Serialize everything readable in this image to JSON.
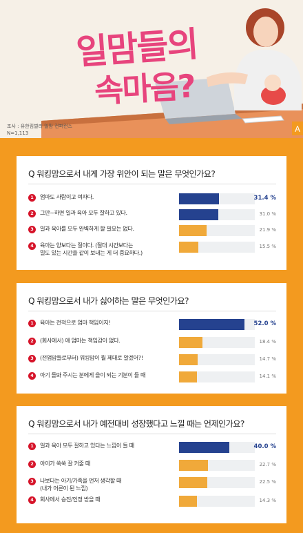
{
  "header": {
    "title_line1": "일맘들의",
    "title_line2": "속마음?",
    "survey_by": "조사 : 유한킴벌리 일맘 컨퍼런스",
    "sample_size": "N=1,113",
    "corner_mark": "A"
  },
  "colors": {
    "background": "#f39a1f",
    "highlight_bar": "#25428f",
    "normal_bar": "#f0a93a",
    "number_badge": "#d6142a"
  },
  "chart_data": [
    {
      "type": "bar",
      "title": "Q 워킹맘으로서 내게 가장 위안이 되는 말은 무엇인가요?",
      "categories": [
        "엄마도 사람이고 여자다.",
        "그만~하면 일과 육아 모두 잘하고 있다.",
        "일과 육아를 모두 완벽하게 할 필요는 없다.",
        "육아는 양보다는 질이다. (절대 시간보다는 밀도 있는 시간을 같이 보내는 게 더 중요하다.)"
      ],
      "lines": [
        [
          "엄마도 사람이고 여자다."
        ],
        [
          "그만~하면 일과 육아 모두 잘하고 있다."
        ],
        [
          "일과 육아를 모두 완벽하게 할 필요는 없다."
        ],
        [
          "육아는 양보다는 질이다. (절대 시간보다는",
          "밀도 있는 시간을 같이 보내는 게 더 중요하다.)"
        ]
      ],
      "values": [
        31.4,
        31.0,
        21.9,
        15.5
      ],
      "labels": [
        "31.4 %",
        "31.0 %",
        "21.9 %",
        "15.5 %"
      ],
      "highlight": [
        true,
        true,
        false,
        false
      ],
      "ylim": [
        0,
        60
      ]
    },
    {
      "type": "bar",
      "title": "Q 워킹맘으로서 내가 싫어하는 말은 무엇인가요?",
      "categories": [
        "육아는 전적으로 엄마 책임이지!",
        "(회사에서) 애 엄마는 책임감이 없다.",
        "(전업맘들로부터) 워킹맘이 뭘 제대로 알겠어?!",
        "아기 돌봐 주시는 분에게 을이 되는 기분이 들 때"
      ],
      "lines": [
        [
          "육아는 전적으로 엄마 책임이지!"
        ],
        [
          "(회사에서) 애 엄마는 책임감이 없다."
        ],
        [
          "(전업맘들로부터) 워킹맘이 뭘 제대로 알겠어?!"
        ],
        [
          "아기 돌봐 주시는 분에게 을이 되는 기분이 들 때"
        ]
      ],
      "values": [
        52.0,
        18.4,
        14.7,
        14.1
      ],
      "labels": [
        "52.0 %",
        "18.4 %",
        "14.7 %",
        "14.1 %"
      ],
      "highlight": [
        true,
        false,
        false,
        false
      ],
      "ylim": [
        0,
        60
      ]
    },
    {
      "type": "bar",
      "title": "Q 워킹맘으로서 내가 예전대비 성장했다고 느낄 때는 언제인가요?",
      "categories": [
        "일과 육아 모두 잘하고 있다는 느낌이 들 때",
        "아이가 쑥쑥 잘 커줄 때",
        "나보다는 아기/가족을 먼저 생각할 때 (내가 어른이 된 느낌)",
        "회사에서 승진/인정 받을 때"
      ],
      "lines": [
        [
          "일과 육아 모두 잘하고 있다는 느낌이 들 때"
        ],
        [
          "아이가 쑥쑥 잘 커줄 때"
        ],
        [
          "나보다는 아기/가족을 먼저 생각할 때",
          "(내가 어른이 된 느낌)"
        ],
        [
          "회사에서 승진/인정 받을 때"
        ]
      ],
      "values": [
        40.0,
        22.7,
        22.5,
        14.3
      ],
      "labels": [
        "40.0 %",
        "22.7 %",
        "22.5 %",
        "14.3 %"
      ],
      "highlight": [
        true,
        false,
        false,
        false
      ],
      "ylim": [
        0,
        60
      ]
    }
  ]
}
